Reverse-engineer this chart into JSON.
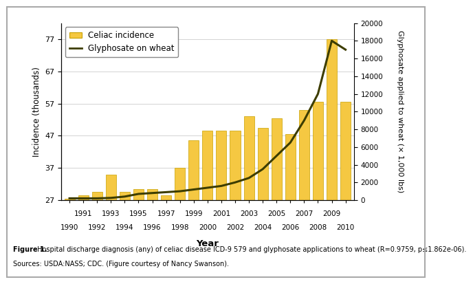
{
  "years": [
    1990,
    1991,
    1992,
    1993,
    1994,
    1995,
    1996,
    1997,
    1998,
    1999,
    2000,
    2001,
    2002,
    2003,
    2004,
    2005,
    2006,
    2007,
    2008,
    2009,
    2010
  ],
  "celiac": [
    27.5,
    28.5,
    29.5,
    35.0,
    29.5,
    30.5,
    30.5,
    28.5,
    37.0,
    45.5,
    48.5,
    48.5,
    48.5,
    53.0,
    49.5,
    52.5,
    47.5,
    55.0,
    57.5,
    77.0,
    57.5
  ],
  "glyphosate": [
    200,
    200,
    200,
    250,
    400,
    700,
    800,
    900,
    1000,
    1200,
    1400,
    1600,
    2000,
    2500,
    3500,
    5000,
    6500,
    9000,
    12000,
    18000,
    17000
  ],
  "ylim_left": [
    27,
    82
  ],
  "yticks_left": [
    27,
    37,
    47,
    57,
    67,
    77
  ],
  "ylim_right": [
    0,
    20000
  ],
  "yticks_right": [
    0,
    2000,
    4000,
    6000,
    8000,
    10000,
    12000,
    14000,
    16000,
    18000,
    20000
  ],
  "bar_color": "#F5C842",
  "bar_edge_color": "#C8A000",
  "line_color": "#3d3d00",
  "xlabel": "Year",
  "ylabel_left": "Incidence (thousands)",
  "ylabel_right": "Glyphosate applied to wheat (× 1,000 lbs)",
  "legend_celiac": "Celiac incidence",
  "legend_glyphosate": "Glyphosate on wheat",
  "caption_bold": "Figure 1.",
  "caption_normal": " Hospital discharge diagnosis (any) of celiac disease ICD-9 579 and glyphosate applications to wheat (R=0.9759, p≤1.862e-06).",
  "caption_line2": "Sources: USDA:NASS; CDC. (Figure courtesy of Nancy Swanson).",
  "xticks_odd": [
    1991,
    1993,
    1995,
    1997,
    1999,
    2001,
    2003,
    2005,
    2007,
    2009
  ],
  "xticks_even": [
    1990,
    1992,
    1994,
    1996,
    1998,
    2000,
    2002,
    2004,
    2006,
    2008,
    2010
  ],
  "background_color": "#ffffff",
  "grid_color": "#cccccc",
  "border_color": "#aaaaaa"
}
